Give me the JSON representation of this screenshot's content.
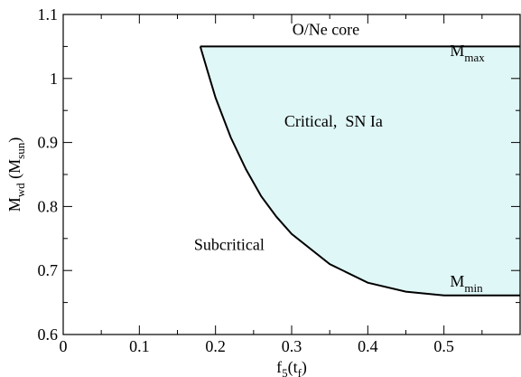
{
  "chart_data": {
    "type": "area",
    "xlabel": {
      "main": "f",
      "sub": "5",
      "paren_open": "(t",
      "paren_sub": "f",
      "paren_close": ")"
    },
    "ylabel": {
      "main": "M",
      "sub": "wd",
      "paren_open": " (M",
      "paren_sub": "sun",
      "paren_close": ")"
    },
    "xlim": [
      0,
      0.6
    ],
    "ylim": [
      0.6,
      1.1
    ],
    "x_ticks": [
      0,
      0.1,
      0.2,
      0.3,
      0.4,
      0.5
    ],
    "x_tick_labels": [
      "0",
      "0.1",
      "0.2",
      "0.3",
      "0.4",
      "0.5"
    ],
    "y_ticks": [
      0.6,
      0.7,
      0.8,
      0.9,
      1.0,
      1.1
    ],
    "y_tick_labels": [
      "0.6",
      "0.7",
      "0.8",
      "0.9",
      "1",
      "1.1"
    ],
    "grid": false,
    "fill_color": "#e0f7f7",
    "line_color": "#000000",
    "series": [
      {
        "x": [
          0.18,
          0.19,
          0.2,
          0.22,
          0.24,
          0.26,
          0.28,
          0.3,
          0.35,
          0.4,
          0.45,
          0.5,
          0.6
        ],
        "y": [
          1.05,
          1.01,
          0.97,
          0.908,
          0.858,
          0.816,
          0.784,
          0.757,
          0.71,
          0.681,
          0.667,
          0.661,
          0.661
        ]
      }
    ],
    "upper_boundary": {
      "y": 1.05,
      "x_from": 0.18,
      "x_to": 0.6
    },
    "annotations": [
      {
        "id": "core",
        "text": "O/Ne core",
        "x": 0.345,
        "y": 1.068
      },
      {
        "id": "critical",
        "text": "Critical,  SN Ia",
        "x": 0.355,
        "y": 0.925
      },
      {
        "id": "subcritical",
        "text": "Subcritical",
        "x": 0.218,
        "y": 0.732
      },
      {
        "id": "mmax",
        "main": "M",
        "sub": "max",
        "x": 0.508,
        "y": 1.035
      },
      {
        "id": "mmin",
        "main": "M",
        "sub": "min",
        "x": 0.508,
        "y": 0.675
      }
    ]
  }
}
